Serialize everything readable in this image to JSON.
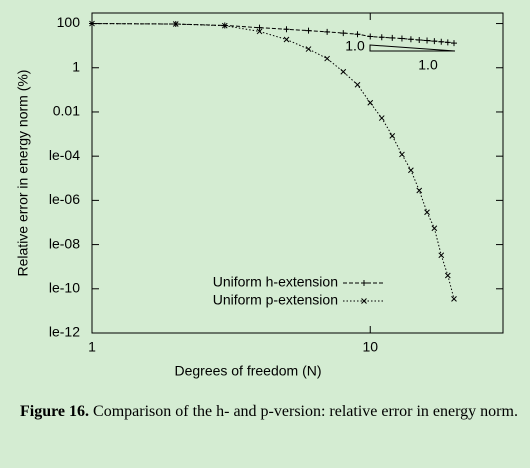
{
  "chart_data": {
    "type": "line",
    "x_label": "Degrees of freedom (N)",
    "y_label": "Relative error in energy norm (%)",
    "log_x": true,
    "log_y": true,
    "xlim": [
      1,
      30
    ],
    "xticks": [
      1,
      10
    ],
    "ylim": [
      1e-12,
      300
    ],
    "yticks": [
      100,
      1,
      0.01,
      {
        "value": 0.0001,
        "label": "le-04"
      },
      {
        "value": 1e-06,
        "label": "le-06"
      },
      {
        "value": 1e-08,
        "label": "le-08"
      },
      {
        "value": 1e-10,
        "label": "le-10"
      },
      {
        "value": 1e-12,
        "label": "le-12"
      }
    ],
    "legend": "bottom-center",
    "annotations": [
      "1.0",
      "1.0"
    ],
    "series": [
      {
        "name": "Uniform h-extension",
        "color": "#000000",
        "dash": "dashed",
        "marker": "plus",
        "x": [
          1,
          2,
          3,
          4,
          5,
          6,
          7,
          8,
          9,
          10,
          11,
          12,
          13,
          14,
          15,
          16,
          17,
          18,
          19,
          20
        ],
        "values": [
          100,
          95,
          82,
          65,
          55,
          48,
          42,
          37,
          33,
          26,
          24,
          22.5,
          21,
          19.5,
          18,
          17,
          16,
          15,
          14,
          13
        ]
      },
      {
        "name": "Uniform p-extension",
        "color": "#000000",
        "dash": "dotted",
        "marker": "cross",
        "x": [
          1,
          2,
          3,
          4,
          5,
          6,
          7,
          8,
          9,
          10,
          11,
          12,
          13,
          14,
          15,
          16,
          17,
          18,
          19,
          20
        ],
        "values": [
          100,
          95,
          80,
          44,
          19,
          7,
          2.6,
          0.66,
          0.17,
          0.026,
          0.0053,
          0.00083,
          0.00012,
          2.3e-05,
          2.8e-06,
          2.9e-07,
          5.5e-08,
          3.3e-09,
          4e-10,
          3.5e-11
        ]
      }
    ]
  },
  "caption": {
    "label": "Figure 16.",
    "text": "Comparison of the h- and p-version: relative error in energy norm."
  }
}
